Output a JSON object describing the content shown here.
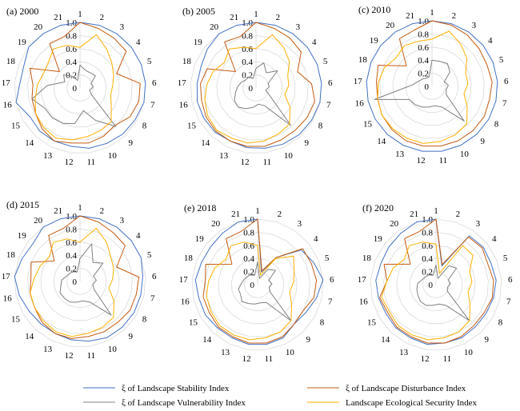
{
  "chart_data": [
    {
      "type": "radar",
      "title": "(a) 2000",
      "categories": [
        "1",
        "2",
        "3",
        "4",
        "5",
        "6",
        "7",
        "8",
        "9",
        "10",
        "11",
        "12",
        "13",
        "14",
        "15",
        "16",
        "17",
        "18",
        "19",
        "20",
        "21"
      ],
      "rlim": [
        0,
        1.0
      ],
      "rticks": [
        "0",
        "0.2",
        "0.4",
        "0.6",
        "0.8",
        "1.0"
      ],
      "series": [
        {
          "name": "ξ of Landscape Stability Index",
          "values": [
            1.0,
            1.0,
            1.0,
            1.0,
            1.0,
            1.0,
            1.0,
            0.97,
            0.96,
            0.94,
            0.93,
            0.9,
            0.9,
            0.9,
            0.88,
            1.0,
            0.92,
            0.92,
            1.0,
            1.0,
            1.0
          ]
        },
        {
          "name": "ξ of Landscape Disturbance Index",
          "values": [
            1.0,
            0.95,
            0.92,
            0.9,
            0.6,
            0.92,
            0.92,
            0.88,
            0.78,
            0.82,
            0.85,
            0.85,
            0.9,
            0.85,
            0.78,
            0.75,
            0.72,
            0.82,
            0.4,
            0.82,
            0.82
          ]
        },
        {
          "name": "ξ of Landscape Vulnerability Index",
          "values": [
            0.35,
            0.28,
            0.28,
            0.3,
            0.18,
            0.2,
            0.15,
            0.2,
            0.8,
            0.55,
            0.35,
            0.55,
            0.6,
            0.62,
            0.62,
            0.75,
            0.5,
            0.25,
            0.32,
            0.22,
            0.12
          ]
        },
        {
          "name": "Landscape Ecological Security Index",
          "values": [
            0.62,
            0.85,
            0.72,
            0.62,
            0.55,
            0.5,
            0.48,
            0.55,
            0.7,
            0.72,
            0.75,
            0.8,
            0.85,
            0.82,
            0.78,
            0.7,
            0.65,
            0.6,
            0.62,
            0.72,
            0.68
          ]
        }
      ]
    },
    {
      "type": "radar",
      "title": "(b) 2005",
      "categories": [
        "1",
        "2",
        "3",
        "4",
        "5",
        "6",
        "7",
        "8",
        "9",
        "10",
        "11",
        "12",
        "13",
        "14",
        "15",
        "16",
        "17",
        "18",
        "19",
        "20",
        "21"
      ],
      "rlim": [
        0,
        1.0
      ],
      "rticks": [
        "0",
        "0.2",
        "0.4",
        "0.6",
        "0.8",
        "1.0"
      ],
      "series": [
        {
          "name": "ξ of Landscape Stability Index",
          "values": [
            1.0,
            1.0,
            1.0,
            1.0,
            1.0,
            1.0,
            1.0,
            0.98,
            0.97,
            0.95,
            0.93,
            0.92,
            0.9,
            0.92,
            0.92,
            0.92,
            0.9,
            0.9,
            0.95,
            1.0,
            1.0
          ]
        },
        {
          "name": "ξ of Landscape Disturbance Index",
          "values": [
            1.0,
            0.95,
            0.92,
            0.88,
            0.68,
            0.85,
            0.92,
            0.9,
            0.88,
            0.88,
            0.9,
            0.9,
            0.9,
            0.9,
            0.88,
            0.85,
            0.85,
            0.8,
            0.4,
            0.85,
            0.82
          ]
        },
        {
          "name": "ξ of Landscape Vulnerability Index",
          "values": [
            0.3,
            0.4,
            0.28,
            0.42,
            0.2,
            0.2,
            0.15,
            0.25,
            0.78,
            0.3,
            0.25,
            0.3,
            0.35,
            0.4,
            0.38,
            0.32,
            0.28,
            0.24,
            0.2,
            0.2,
            0.15
          ]
        },
        {
          "name": "Landscape Ecological Security Index",
          "values": [
            0.6,
            0.85,
            0.75,
            0.65,
            0.52,
            0.5,
            0.45,
            0.6,
            0.75,
            0.78,
            0.82,
            0.85,
            0.85,
            0.88,
            0.85,
            0.8,
            0.75,
            0.7,
            0.62,
            0.72,
            0.65
          ]
        }
      ]
    },
    {
      "type": "radar",
      "title": "(c) 2010",
      "categories": [
        "1",
        "2",
        "3",
        "4",
        "5",
        "6",
        "7",
        "8",
        "9",
        "10",
        "11",
        "12",
        "13",
        "14",
        "15",
        "16",
        "17",
        "18",
        "19",
        "20",
        "21"
      ],
      "rlim": [
        0,
        1.0
      ],
      "rticks": [
        "0",
        "0.2",
        "0.4",
        "0.6",
        "0.8",
        "1.0"
      ],
      "series": [
        {
          "name": "ξ of Landscape Stability Index",
          "values": [
            1.0,
            1.0,
            1.0,
            1.0,
            1.0,
            1.0,
            1.0,
            1.0,
            1.0,
            1.0,
            1.0,
            1.0,
            1.0,
            1.0,
            1.0,
            1.0,
            1.0,
            1.0,
            1.0,
            1.0,
            1.0
          ]
        },
        {
          "name": "ξ of Landscape Disturbance Index",
          "values": [
            1.0,
            0.98,
            0.95,
            0.92,
            0.9,
            0.92,
            0.9,
            0.92,
            0.92,
            0.92,
            0.92,
            0.92,
            0.92,
            0.9,
            0.88,
            0.85,
            0.85,
            0.88,
            0.5,
            0.88,
            0.9
          ]
        },
        {
          "name": "ξ of Landscape Vulnerability Index",
          "values": [
            0.4,
            0.4,
            0.42,
            0.35,
            0.2,
            0.25,
            0.22,
            0.25,
            0.72,
            0.35,
            0.3,
            0.32,
            0.35,
            0.38,
            0.4,
            0.9,
            0.3,
            0.22,
            0.18,
            0.15,
            0.15
          ]
        },
        {
          "name": "Landscape Ecological Security Index",
          "values": [
            0.72,
            0.88,
            0.78,
            0.68,
            0.55,
            0.55,
            0.5,
            0.62,
            0.78,
            0.82,
            0.85,
            0.88,
            0.88,
            0.88,
            0.88,
            0.85,
            0.82,
            0.78,
            0.7,
            0.75,
            0.72
          ]
        }
      ]
    },
    {
      "type": "radar",
      "title": "(d) 2015",
      "categories": [
        "1",
        "2",
        "3",
        "4",
        "5",
        "6",
        "7",
        "8",
        "9",
        "10",
        "11",
        "12",
        "13",
        "14",
        "15",
        "16",
        "17",
        "18",
        "19",
        "20",
        "21"
      ],
      "rlim": [
        0,
        1.0
      ],
      "rticks": [
        "0",
        "0.2",
        "0.4",
        "0.6",
        "0.8",
        "1.0"
      ],
      "series": [
        {
          "name": "ξ of Landscape Stability Index",
          "values": [
            1.0,
            1.0,
            1.0,
            1.0,
            1.0,
            0.96,
            0.95,
            0.95,
            0.95,
            0.95,
            0.92,
            0.9,
            0.88,
            0.88,
            0.9,
            0.95,
            1.0,
            0.95,
            0.92,
            1.0,
            1.0
          ]
        },
        {
          "name": "ξ of Landscape Disturbance Index",
          "values": [
            1.0,
            0.95,
            0.9,
            0.88,
            0.6,
            0.9,
            0.88,
            0.88,
            0.85,
            0.85,
            0.85,
            0.88,
            0.88,
            0.85,
            0.8,
            0.78,
            0.75,
            0.8,
            0.5,
            0.85,
            0.85
          ]
        },
        {
          "name": "ξ of Landscape Vulnerability Index",
          "values": [
            0.35,
            0.6,
            0.35,
            0.45,
            0.22,
            0.25,
            0.2,
            0.25,
            0.7,
            0.35,
            0.3,
            0.32,
            0.35,
            0.35,
            0.35,
            0.3,
            0.28,
            0.22,
            0.2,
            0.18,
            0.15
          ]
        },
        {
          "name": "Landscape Ecological Security Index",
          "values": [
            0.6,
            0.85,
            0.72,
            0.6,
            0.55,
            0.5,
            0.45,
            0.6,
            0.75,
            0.78,
            0.8,
            0.85,
            0.85,
            0.82,
            0.8,
            0.78,
            0.7,
            0.65,
            0.6,
            0.72,
            0.68
          ]
        }
      ]
    },
    {
      "type": "radar",
      "title": "(e) 2018",
      "categories": [
        "1",
        "2",
        "3",
        "4",
        "5",
        "6",
        "7",
        "8",
        "9",
        "10",
        "11",
        "12",
        "13",
        "14",
        "15",
        "16",
        "17",
        "18",
        "19",
        "20",
        "21"
      ],
      "rlim": [
        0,
        1.0
      ],
      "rticks": [
        "0",
        "0.2",
        "0.4",
        "0.6",
        "0.8",
        "1.0"
      ],
      "series": [
        {
          "name": "ξ of Landscape Stability Index",
          "values": [
            1.0,
            0.2,
            0.5,
            0.85,
            0.92,
            1.0,
            0.92,
            0.85,
            0.82,
            0.9,
            0.92,
            0.92,
            0.9,
            0.9,
            0.92,
            0.92,
            0.95,
            0.92,
            0.92,
            0.95,
            1.0
          ]
        },
        {
          "name": "ξ of Landscape Disturbance Index",
          "values": [
            1.0,
            0.22,
            0.5,
            0.88,
            0.88,
            0.9,
            0.88,
            0.8,
            0.82,
            0.88,
            0.9,
            0.9,
            0.88,
            0.88,
            0.85,
            0.85,
            0.8,
            0.85,
            0.5,
            0.85,
            0.85
          ]
        },
        {
          "name": "ξ of Landscape Vulnerability Index",
          "values": [
            0.35,
            0.1,
            0.28,
            0.35,
            0.18,
            0.22,
            0.18,
            0.22,
            0.75,
            0.3,
            0.28,
            0.3,
            0.32,
            0.35,
            0.3,
            0.3,
            0.25,
            0.22,
            0.2,
            0.18,
            0.15
          ]
        },
        {
          "name": "Landscape Ecological Security Index",
          "values": [
            0.6,
            0.15,
            0.48,
            0.7,
            0.6,
            0.55,
            0.5,
            0.6,
            0.75,
            0.8,
            0.82,
            0.85,
            0.85,
            0.85,
            0.82,
            0.8,
            0.75,
            0.7,
            0.62,
            0.72,
            0.68
          ]
        }
      ]
    },
    {
      "type": "radar",
      "title": "(f) 2020",
      "categories": [
        "1",
        "2",
        "3",
        "4",
        "5",
        "6",
        "7",
        "8",
        "9",
        "10",
        "11",
        "12",
        "13",
        "14",
        "15",
        "16",
        "17",
        "18",
        "19",
        "20",
        "21"
      ],
      "rlim": [
        0,
        1.0
      ],
      "rticks": [
        "0",
        "0.2",
        "0.4",
        "0.6",
        "0.8",
        "1.0"
      ],
      "series": [
        {
          "name": "ξ of Landscape Stability Index",
          "values": [
            1.0,
            0.3,
            0.9,
            0.92,
            0.9,
            0.92,
            0.9,
            0.88,
            0.88,
            0.9,
            0.9,
            0.92,
            0.9,
            0.9,
            0.88,
            0.9,
            0.92,
            0.9,
            0.92,
            0.95,
            1.0
          ]
        },
        {
          "name": "ξ of Landscape Disturbance Index",
          "values": [
            1.0,
            0.32,
            0.88,
            0.9,
            0.85,
            0.88,
            0.88,
            0.85,
            0.85,
            0.88,
            0.9,
            0.9,
            0.88,
            0.88,
            0.85,
            0.88,
            0.75,
            0.85,
            0.5,
            0.85,
            0.85
          ]
        },
        {
          "name": "ξ of Landscape Vulnerability Index",
          "values": [
            0.3,
            0.1,
            0.35,
            0.4,
            0.2,
            0.22,
            0.18,
            0.2,
            0.75,
            0.35,
            0.3,
            0.32,
            0.35,
            0.35,
            0.32,
            0.3,
            0.28,
            0.22,
            0.2,
            0.18,
            0.15
          ]
        },
        {
          "name": "Landscape Ecological Security Index",
          "values": [
            0.62,
            0.18,
            0.72,
            0.72,
            0.55,
            0.55,
            0.5,
            0.6,
            0.75,
            0.8,
            0.82,
            0.85,
            0.85,
            0.85,
            0.82,
            0.85,
            0.75,
            0.7,
            0.62,
            0.72,
            0.68
          ]
        }
      ]
    }
  ],
  "legend": {
    "placement": "bottom",
    "items": [
      {
        "label": "ξ of Landscape Stability Index",
        "color": "#4472c4"
      },
      {
        "label": "ξ of Landscape Disturbance Index",
        "color": "#c55a11"
      },
      {
        "label": "ξ of Landscape Vulnerability Index",
        "color": "#808080"
      },
      {
        "label": "Landscape Ecological Security Index",
        "color": "#ffb000"
      }
    ]
  },
  "grid_color": "#d9d9d9"
}
